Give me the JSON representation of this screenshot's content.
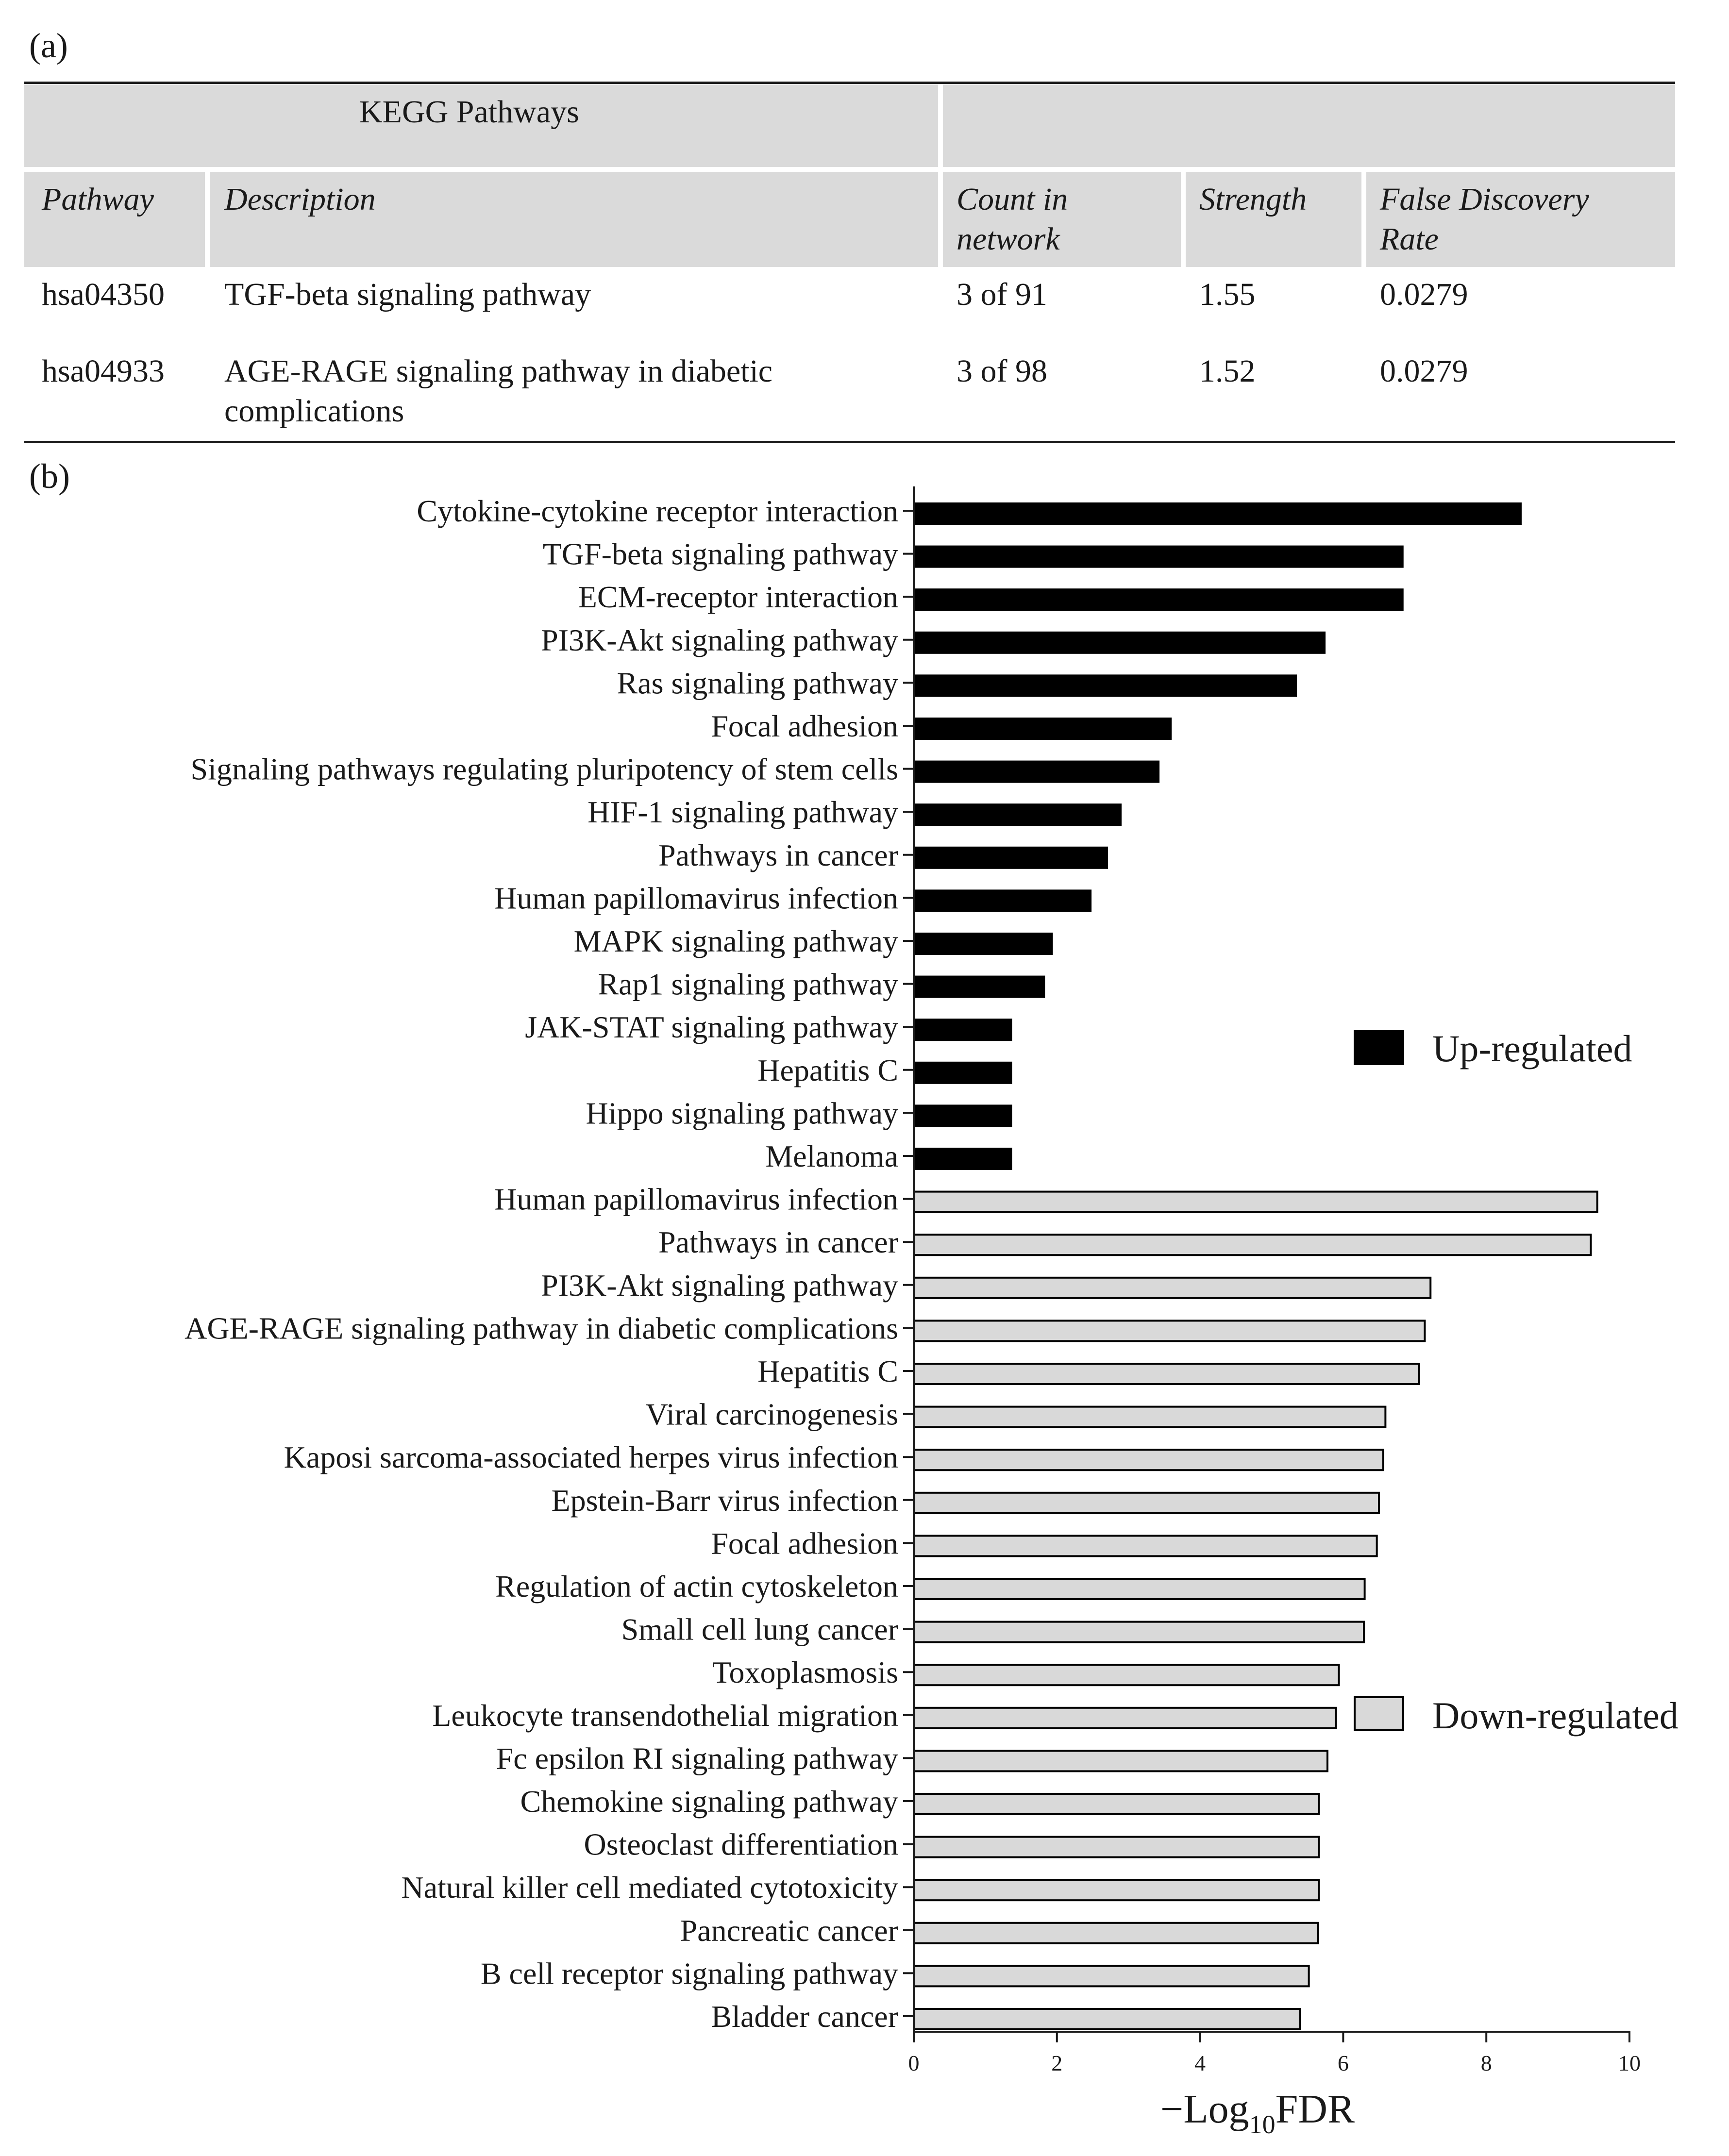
{
  "panel_a_label": "(a)",
  "panel_b_label": "(b)",
  "table": {
    "group_header": "KEGG Pathways",
    "headers": [
      "Pathway",
      "Description",
      "Count in network",
      "Strength",
      "False Discovery Rate"
    ],
    "header_lines": [
      [
        "Pathway"
      ],
      [
        "Description"
      ],
      [
        "Count in",
        "network"
      ],
      [
        "Strength"
      ],
      [
        "False Discovery",
        "Rate"
      ]
    ],
    "rows": [
      {
        "pathway": "hsa04350",
        "description": [
          "TGF-beta signaling pathway"
        ],
        "count": "3 of 91",
        "strength": "1.55",
        "fdr": "0.0279"
      },
      {
        "pathway": "hsa04933",
        "description": [
          "AGE-RAGE signaling pathway in diabetic",
          "complications"
        ],
        "count": "3 of 98",
        "strength": "1.52",
        "fdr": "0.0279"
      }
    ],
    "colors": {
      "band": "#dadada",
      "rule": "#1a1a1a"
    }
  },
  "chart_data": {
    "type": "bar",
    "orientation": "horizontal",
    "xlabel_main": "−Log",
    "xlabel_sub": "10",
    "xlabel_tail": "FDR",
    "xlim": [
      0,
      10
    ],
    "xticks": [
      0,
      2,
      4,
      6,
      8,
      10
    ],
    "series": [
      {
        "name": "Up-regulated",
        "color": "#000000",
        "categories": [
          "Cytokine-cytokine receptor interaction",
          "TGF-beta signaling pathway",
          "ECM-receptor interaction",
          "PI3K-Akt signaling pathway",
          "Ras signaling pathway",
          "Focal adhesion",
          "Signaling pathways regulating pluripotency of stem cells",
          "HIF-1 signaling pathway",
          "Pathways in cancer",
          "Human papillomavirus infection",
          "MAPK signaling pathway",
          "Rap1 signaling pathway",
          "JAK-STAT signaling pathway",
          "Hepatitis C",
          "Hippo signaling pathway",
          "Melanoma"
        ],
        "values": [
          8.48,
          6.83,
          6.83,
          5.74,
          5.34,
          3.59,
          3.42,
          2.89,
          2.7,
          2.47,
          1.93,
          1.82,
          1.36,
          1.36,
          1.36,
          1.36
        ]
      },
      {
        "name": "Down-regulated",
        "color": "#d9d9d9",
        "categories": [
          "Human papillomavirus infection",
          "Pathways in cancer",
          "PI3K-Akt signaling pathway",
          "AGE-RAGE signaling pathway in diabetic complications",
          "Hepatitis C",
          "Viral carcinogenesis",
          "Kaposi sarcoma-associated herpes virus infection",
          "Epstein-Barr virus infection",
          "Focal adhesion",
          "Regulation of actin cytoskeleton",
          "Small cell lung cancer",
          "Toxoplasmosis",
          "Leukocyte transendothelial migration",
          "Fc epsilon RI signaling pathway",
          "Chemokine signaling pathway",
          "Osteoclast differentiation",
          "Natural killer cell mediated cytotoxicity",
          "Pancreatic cancer",
          "B cell receptor signaling pathway",
          "Bladder cancer"
        ],
        "values": [
          9.55,
          9.46,
          7.22,
          7.14,
          7.06,
          6.59,
          6.56,
          6.5,
          6.47,
          6.3,
          6.29,
          5.94,
          5.9,
          5.78,
          5.66,
          5.66,
          5.66,
          5.65,
          5.52,
          5.4
        ]
      }
    ],
    "legend": [
      "Up-regulated",
      "Down-regulated"
    ]
  }
}
